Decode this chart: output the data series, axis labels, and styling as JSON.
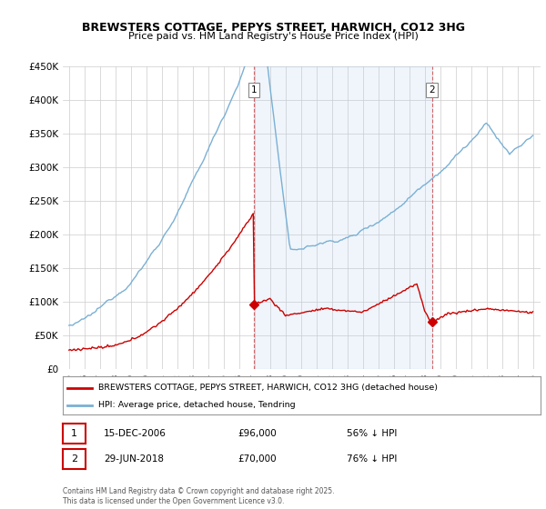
{
  "title": "BREWSTERS COTTAGE, PEPYS STREET, HARWICH, CO12 3HG",
  "subtitle": "Price paid vs. HM Land Registry's House Price Index (HPI)",
  "legend_entry1": "BREWSTERS COTTAGE, PEPYS STREET, HARWICH, CO12 3HG (detached house)",
  "legend_entry2": "HPI: Average price, detached house, Tendring",
  "table_row1": [
    "1",
    "15-DEC-2006",
    "£96,000",
    "56% ↓ HPI"
  ],
  "table_row2": [
    "2",
    "29-JUN-2018",
    "£70,000",
    "76% ↓ HPI"
  ],
  "footnote": "Contains HM Land Registry data © Crown copyright and database right 2025.\nThis data is licensed under the Open Government Licence v3.0.",
  "price_color": "#cc0000",
  "hpi_color": "#7ab0d4",
  "shade_color": "#ddeeff",
  "marker1_x": 2006.96,
  "marker2_x": 2018.49,
  "marker1_price": 96000,
  "marker2_price": 70000,
  "ylim": [
    0,
    450000
  ],
  "yticks": [
    0,
    50000,
    100000,
    150000,
    200000,
    250000,
    300000,
    350000,
    400000,
    450000
  ],
  "background_color": "#ffffff",
  "grid_color": "#cccccc"
}
